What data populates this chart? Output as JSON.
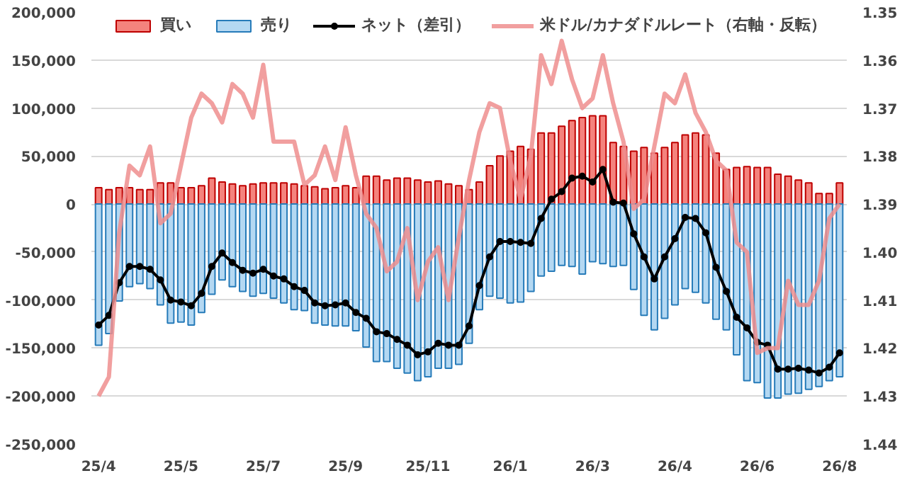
{
  "chart_data": {
    "type": "bar",
    "stacked": true,
    "grid": "y",
    "legend": "top",
    "categories": [
      "25/4",
      null,
      null,
      null,
      null,
      null,
      null,
      null,
      "25/5",
      null,
      null,
      null,
      null,
      null,
      null,
      null,
      "25/7",
      null,
      null,
      null,
      null,
      null,
      null,
      null,
      "25/9",
      null,
      null,
      null,
      null,
      null,
      null,
      null,
      "25/11",
      null,
      null,
      null,
      null,
      null,
      null,
      null,
      "26/1",
      null,
      null,
      null,
      null,
      null,
      null,
      null,
      "26/3",
      null,
      null,
      null,
      null,
      null,
      null,
      null,
      "26/4",
      null,
      null,
      null,
      null,
      null,
      null,
      null,
      "26/6",
      null,
      null,
      null,
      null,
      null,
      null,
      null,
      "26/8"
    ],
    "series": [
      {
        "name": "買い",
        "color": "#f4837d",
        "values": [
          17000,
          15000,
          17000,
          17000,
          15000,
          15000,
          22000,
          22000,
          17000,
          17000,
          19000,
          27000,
          23000,
          21000,
          19000,
          21000,
          22000,
          22000,
          22000,
          21000,
          19000,
          18000,
          16000,
          17000,
          19000,
          17000,
          29000,
          29000,
          25000,
          27000,
          27000,
          25000,
          23000,
          24000,
          21000,
          19000,
          15000,
          23000,
          40000,
          50000,
          55000,
          60000,
          57000,
          74000,
          74000,
          81000,
          87000,
          90000,
          92000,
          92000,
          64000,
          60000,
          55000,
          59000,
          53000,
          59000,
          64000,
          72000,
          74000,
          72000,
          53000,
          36000,
          38000,
          39000,
          38000,
          38000,
          31000,
          29000,
          25000,
          22000,
          11000,
          11000,
          22000
        ]
      },
      {
        "name": "売り",
        "color": "#b4d8f2",
        "values": [
          -147000,
          -135000,
          -101000,
          -86000,
          -83000,
          -88000,
          -105000,
          -124000,
          -123000,
          -126000,
          -113000,
          -94000,
          -79000,
          -86000,
          -91000,
          -96000,
          -93000,
          -98000,
          -103000,
          -110000,
          -111000,
          -124000,
          -126000,
          -127000,
          -127000,
          -132000,
          -149000,
          -164000,
          -164000,
          -171000,
          -176000,
          -184000,
          -180000,
          -171000,
          -171000,
          -167000,
          -145000,
          -110000,
          -96000,
          -98000,
          -103000,
          -102000,
          -91000,
          -75000,
          -70000,
          -64000,
          -65000,
          -73000,
          -60000,
          -62000,
          -65000,
          -64000,
          -89000,
          -116000,
          -131000,
          -119000,
          -105000,
          -88000,
          -92000,
          -103000,
          -120000,
          -131000,
          -157000,
          -184000,
          -186000,
          -202000,
          -202000,
          -198000,
          -197000,
          -193000,
          -190000,
          -184000,
          -180000
        ]
      },
      {
        "name": "ネット（差引）",
        "type": "line",
        "color": "#000000",
        "marker": "circle",
        "values": [
          -126000,
          -116000,
          -82000,
          -65000,
          -65000,
          -68000,
          -79000,
          -100000,
          -102000,
          -106000,
          -93000,
          -65000,
          -51000,
          -61000,
          -69000,
          -72000,
          -68000,
          -75000,
          -78000,
          -86000,
          -90000,
          -103000,
          -106000,
          -105000,
          -103000,
          -113000,
          -119000,
          -133000,
          -135000,
          -141000,
          -147000,
          -157000,
          -154000,
          -145000,
          -147000,
          -147000,
          -127000,
          -85000,
          -55000,
          -39000,
          -39000,
          -40000,
          -41000,
          -15000,
          5000,
          13000,
          27000,
          29000,
          23000,
          36000,
          2000,
          1000,
          -31000,
          -55000,
          -78000,
          -55000,
          -36000,
          -14000,
          -15000,
          -30000,
          -66000,
          -91000,
          -118000,
          -129000,
          -144000,
          -147000,
          -172000,
          -172000,
          -171000,
          -173000,
          -176000,
          -170000,
          -155000
        ]
      },
      {
        "name": "米ドル/カナダドルレート（右軸・反転）",
        "type": "line",
        "color": "#ee8e8e",
        "axis": "y2",
        "values": [
          1.43,
          1.426,
          1.396,
          1.382,
          1.384,
          1.378,
          1.394,
          1.392,
          1.382,
          1.372,
          1.367,
          1.369,
          1.373,
          1.365,
          1.367,
          1.372,
          1.361,
          1.377,
          1.377,
          1.377,
          1.386,
          1.384,
          1.378,
          1.385,
          1.374,
          1.384,
          1.392,
          1.395,
          1.404,
          1.402,
          1.395,
          1.41,
          1.402,
          1.399,
          1.41,
          1.397,
          1.385,
          1.375,
          1.369,
          1.37,
          1.381,
          1.389,
          1.38,
          1.359,
          1.365,
          1.356,
          1.364,
          1.37,
          1.368,
          1.359,
          1.369,
          1.377,
          1.391,
          1.389,
          1.378,
          1.367,
          1.369,
          1.363,
          1.371,
          1.375,
          1.381,
          1.383,
          1.398,
          1.4,
          1.421,
          1.42,
          1.42,
          1.406,
          1.411,
          1.411,
          1.406,
          1.393,
          1.39
        ]
      }
    ],
    "ylim": [
      -250000,
      200000
    ],
    "yticks": [
      {
        "value": -250000,
        "label": "-250,000"
      },
      {
        "value": -200000,
        "label": "-200,000"
      },
      {
        "value": -150000,
        "label": "-150,000"
      },
      {
        "value": -100000,
        "label": "-100,000"
      },
      {
        "value": -50000,
        "label": "-50,000"
      },
      0,
      {
        "value": 50000,
        "label": "50,000"
      },
      {
        "value": 100000,
        "label": "100,000"
      },
      {
        "value": 150000,
        "label": "150,000"
      },
      {
        "value": 200000,
        "label": "200,000"
      }
    ],
    "y2lim": [
      1.44,
      1.35
    ],
    "y2ticks": [
      1.35,
      1.36,
      1.37,
      1.38,
      1.39,
      {
        "value": 1.4,
        "label": "1.40"
      },
      1.41,
      1.42,
      1.43,
      1.44
    ]
  }
}
